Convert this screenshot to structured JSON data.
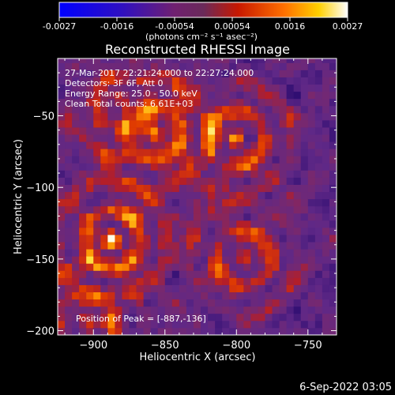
{
  "colorbar": {
    "ticks": [
      "-0.0027",
      "-0.0016",
      "-0.00054",
      "0.00054",
      "0.0016",
      "0.0027"
    ],
    "unit_label": "(photons cm⁻² s⁻¹ asec⁻²)",
    "range": [
      -0.0027,
      0.0027
    ]
  },
  "chart_data": {
    "type": "heatmap",
    "title": "Reconstructed RHESSI Image",
    "xlabel": "Heliocentric X (arcsec)",
    "ylabel": "Heliocentric Y (arcsec)",
    "xlim": [
      -925,
      -730
    ],
    "ylim": [
      -203,
      -10
    ],
    "x_ticks": [
      {
        "v": -900,
        "label": "−900"
      },
      {
        "v": -850,
        "label": "−850"
      },
      {
        "v": -800,
        "label": "−800"
      },
      {
        "v": -750,
        "label": "−750"
      }
    ],
    "y_ticks": [
      {
        "v": -50,
        "label": "−50"
      },
      {
        "v": -100,
        "label": "−100"
      },
      {
        "v": -150,
        "label": "−150"
      },
      {
        "v": -200,
        "label": "−200"
      }
    ],
    "annotations": [
      "27-Mar-2017 22:21:24.000 to 22:27:24.000",
      "Detectors: 3F 6F, Att 0",
      "Energy Range: 25.0 - 50.0 keV",
      "Clean     Total counts: 6.61E+03"
    ],
    "peak_label": "Position of Peak = [-887,-136]",
    "peak": [
      -887,
      -136
    ],
    "sources": [
      {
        "x": -887,
        "y": -136,
        "amp": 1.0
      },
      {
        "x": -800,
        "y": -66,
        "amp": 0.85
      },
      {
        "x": -795,
        "y": -150,
        "amp": 0.8
      },
      {
        "x": -858,
        "y": -62,
        "amp": 0.75
      },
      {
        "x": -880,
        "y": -40,
        "amp": 0.55
      },
      {
        "x": -905,
        "y": -195,
        "amp": 0.7
      }
    ]
  },
  "footer_date": "6-Sep-2022 03:05"
}
